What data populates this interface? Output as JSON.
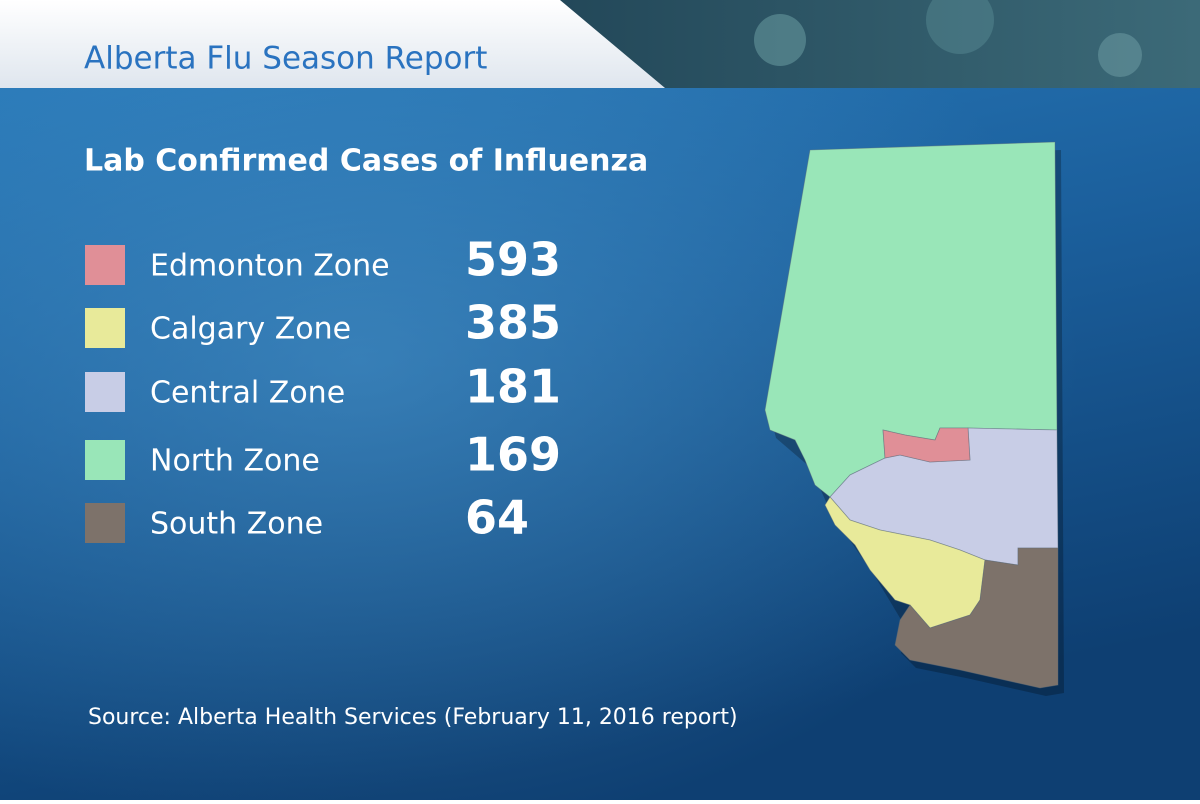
{
  "header": {
    "title": "Alberta Flu Season Report"
  },
  "subtitle": "Lab Confirmed Cases of Influenza",
  "zones": [
    {
      "name": "Edmonton Zone",
      "cases": "593",
      "color": "#e08f97"
    },
    {
      "name": "Calgary Zone",
      "cases": "385",
      "color": "#e8ea9a"
    },
    {
      "name": "Central Zone",
      "cases": "181",
      "color": "#c8cde6"
    },
    {
      "name": "North Zone",
      "cases": "169",
      "color": "#99e6b8"
    },
    {
      "name": "South Zone",
      "cases": "64",
      "color": "#7d726a"
    }
  ],
  "source": "Source: Alberta Health Services (February 11, 2016 report)"
}
